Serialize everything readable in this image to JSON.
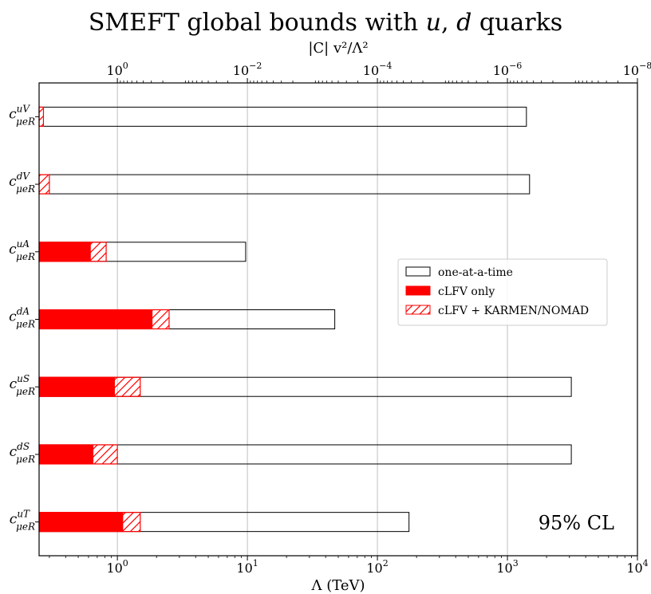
{
  "chart_data": {
    "type": "bar",
    "orientation": "horizontal",
    "title_prefix": "SMEFT global bounds with ",
    "title_vars": [
      "u",
      "d"
    ],
    "title_sep": ", ",
    "title_suffix": " quarks",
    "xlabel": "Λ (TeV)",
    "x2label": "|C| v²/Λ²",
    "xscale": "log",
    "xlim": [
      0.25,
      10000
    ],
    "x_ticks": [
      {
        "value": 1,
        "base": "10",
        "exp": "0"
      },
      {
        "value": 10,
        "base": "10",
        "exp": "1"
      },
      {
        "value": 100,
        "base": "10",
        "exp": "2"
      },
      {
        "value": 1000,
        "base": "10",
        "exp": "3"
      },
      {
        "value": 10000,
        "base": "10",
        "exp": "4"
      }
    ],
    "x2_ticks": [
      {
        "value": 1,
        "base": "10",
        "exp": "0"
      },
      {
        "value": 0.01,
        "base": "10",
        "exp": "−2"
      },
      {
        "value": 0.0001,
        "base": "10",
        "exp": "−4"
      },
      {
        "value": 1e-06,
        "base": "10",
        "exp": "−6"
      },
      {
        "value": 1e-08,
        "base": "10",
        "exp": "−8"
      }
    ],
    "categories": [
      {
        "base": "c",
        "sup": "uV",
        "sub": "μeR"
      },
      {
        "base": "c",
        "sup": "dV",
        "sub": "μeR"
      },
      {
        "base": "c",
        "sup": "uA",
        "sub": "μeR"
      },
      {
        "base": "c",
        "sup": "dA",
        "sub": "μeR"
      },
      {
        "base": "c",
        "sup": "uS",
        "sub": "μeR"
      },
      {
        "base": "c",
        "sup": "dS",
        "sub": "μeR"
      },
      {
        "base": "c",
        "sup": "uT",
        "sub": "μeR"
      }
    ],
    "series": [
      {
        "name": "one-at-a-time",
        "style": "outline",
        "values": [
          1400,
          1480,
          9.7,
          47,
          3100,
          3100,
          175
        ]
      },
      {
        "name": "cLFV only",
        "style": "filled",
        "values": [
          null,
          null,
          0.62,
          1.85,
          0.95,
          0.65,
          1.1
        ]
      },
      {
        "name": "cLFV + KARMEN/NOMAD",
        "style": "hatched",
        "values": [
          0.27,
          0.3,
          0.82,
          2.5,
          1.5,
          1.0,
          1.5
        ]
      }
    ],
    "grid": "x-major",
    "legend_position": "center-right",
    "annotation": "95% CL",
    "colors": {
      "fill": "#ff0000",
      "outline": "#000000",
      "hatch": "#ff0000",
      "grid": "#b0b0b0"
    }
  }
}
